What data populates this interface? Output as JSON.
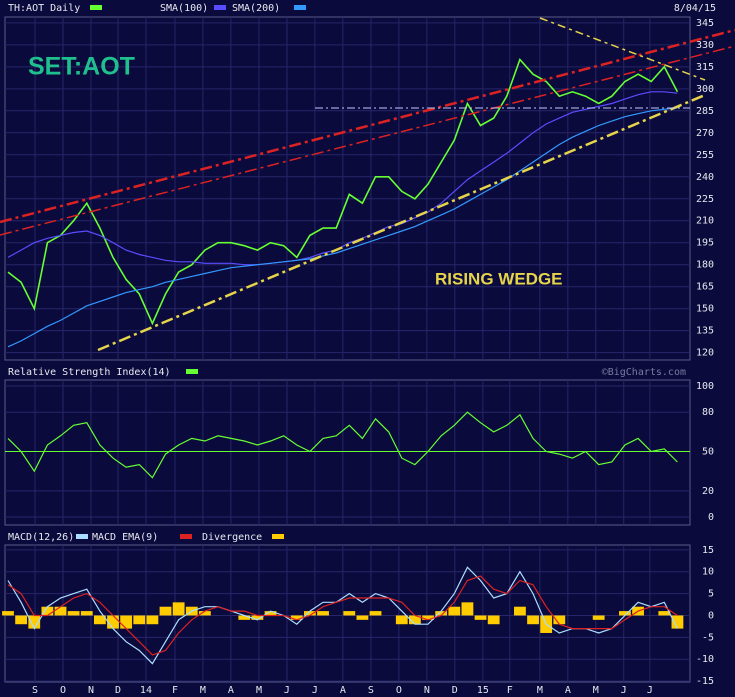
{
  "chart_data": [
    {
      "type": "line",
      "title": "SET:AOT",
      "date": "8/04/15",
      "annotation": "RISING WEDGE",
      "ylim": [
        115,
        349
      ],
      "yticks": [
        120,
        135,
        150,
        165,
        180,
        195,
        210,
        225,
        240,
        255,
        270,
        285,
        300,
        315,
        330,
        345
      ],
      "grid": true,
      "series": [
        {
          "name": "TH:AOT Daily",
          "color": "#66ff33",
          "values": [
            175,
            168,
            150,
            195,
            200,
            210,
            222,
            205,
            185,
            170,
            160,
            140,
            160,
            175,
            180,
            190,
            195,
            195,
            193,
            190,
            195,
            193,
            185,
            200,
            205,
            205,
            228,
            222,
            240,
            240,
            230,
            225,
            235,
            250,
            265,
            290,
            275,
            280,
            295,
            320,
            310,
            305,
            295,
            298,
            295,
            290,
            295,
            305,
            310,
            305,
            315,
            298
          ]
        },
        {
          "name": "SMA(100)",
          "color": "#5a4cff",
          "values": [
            185,
            190,
            195,
            198,
            200,
            202,
            203,
            200,
            195,
            190,
            187,
            185,
            183,
            182,
            182,
            181,
            181,
            181,
            180,
            180,
            181,
            182,
            183,
            185,
            188,
            190,
            195,
            198,
            202,
            206,
            208,
            212,
            216,
            222,
            230,
            238,
            244,
            250,
            256,
            263,
            270,
            276,
            280,
            284,
            286,
            288,
            290,
            293,
            296,
            298,
            298,
            297
          ]
        },
        {
          "name": "SMA(200)",
          "color": "#3399ff",
          "values": [
            124,
            128,
            133,
            138,
            142,
            147,
            152,
            155,
            158,
            161,
            163,
            165,
            168,
            170,
            172,
            174,
            176,
            178,
            179,
            180,
            181,
            182,
            183,
            184,
            186,
            188,
            191,
            194,
            197,
            200,
            203,
            206,
            210,
            214,
            218,
            223,
            228,
            233,
            238,
            244,
            250,
            256,
            262,
            267,
            271,
            275,
            278,
            281,
            283,
            285,
            286,
            287
          ]
        }
      ]
    },
    {
      "type": "line",
      "credit": "©BigCharts.com",
      "ylim": [
        -6.1,
        104.6
      ],
      "yticks": [
        0,
        20,
        50,
        80,
        100
      ],
      "midline": 50,
      "series": [
        {
          "name": "Relative Strength Index(14)",
          "color": "#66ff33",
          "values": [
            60,
            50,
            35,
            55,
            62,
            70,
            72,
            55,
            45,
            38,
            40,
            30,
            48,
            55,
            60,
            58,
            62,
            60,
            58,
            55,
            58,
            62,
            55,
            50,
            60,
            62,
            70,
            60,
            75,
            65,
            45,
            40,
            50,
            62,
            70,
            80,
            72,
            65,
            70,
            78,
            60,
            50,
            48,
            45,
            50,
            40,
            42,
            55,
            60,
            50,
            52,
            42
          ]
        }
      ]
    },
    {
      "type": "line",
      "ylim": [
        -15.2,
        16.1
      ],
      "yticks": [
        -15,
        -10,
        -5,
        0,
        5,
        10,
        15
      ],
      "xlim": [
        0,
        51.5
      ],
      "xticks": [
        {
          "value": 2.06,
          "label": "S"
        },
        {
          "value": 4.19,
          "label": "O"
        },
        {
          "value": 6.32,
          "label": "N"
        },
        {
          "value": 8.38,
          "label": "D"
        },
        {
          "value": 10.51,
          "label": "14"
        },
        {
          "value": 12.72,
          "label": "F"
        },
        {
          "value": 14.85,
          "label": "M"
        },
        {
          "value": 16.98,
          "label": "A"
        },
        {
          "value": 19.12,
          "label": "M"
        },
        {
          "value": 21.25,
          "label": "J"
        },
        {
          "value": 23.38,
          "label": "J"
        },
        {
          "value": 25.51,
          "label": "A"
        },
        {
          "value": 27.65,
          "label": "S"
        },
        {
          "value": 29.78,
          "label": "O"
        },
        {
          "value": 31.91,
          "label": "N"
        },
        {
          "value": 34.04,
          "label": "D"
        },
        {
          "value": 36.18,
          "label": "15"
        },
        {
          "value": 38.23,
          "label": "F"
        },
        {
          "value": 40.52,
          "label": "M"
        },
        {
          "value": 42.65,
          "label": "A"
        },
        {
          "value": 44.78,
          "label": "M"
        },
        {
          "value": 46.91,
          "label": "J"
        },
        {
          "value": 48.9,
          "label": "J"
        }
      ],
      "series": [
        {
          "name": "MACD(12,26)",
          "color": "#aaddff",
          "values": [
            8,
            3,
            -3,
            2,
            4,
            5,
            6,
            1,
            -3,
            -6,
            -8,
            -11,
            -6,
            -1,
            1,
            2,
            2,
            1,
            0,
            -1,
            1,
            0,
            -2,
            1,
            3,
            3,
            5,
            3,
            5,
            4,
            1,
            -2,
            -2,
            1,
            5,
            11,
            8,
            4,
            5,
            10,
            5,
            -2,
            -4,
            -3,
            -3,
            -4,
            -3,
            0,
            3,
            2,
            3,
            -3
          ]
        },
        {
          "name": "MACD EMA(9)",
          "color": "#dd2222",
          "values": [
            7,
            5,
            0,
            0,
            2,
            4,
            5,
            3,
            0,
            -3,
            -6,
            -9,
            -8,
            -4,
            -1,
            1,
            2,
            1,
            1,
            0,
            0,
            0,
            -1,
            0,
            2,
            3,
            4,
            4,
            4,
            4,
            3,
            0,
            -1,
            0,
            3,
            8,
            9,
            6,
            5,
            8,
            7,
            2,
            -2,
            -3,
            -3,
            -3,
            -3,
            -1,
            1,
            2,
            2,
            0
          ]
        },
        {
          "name": "Divergence",
          "color": "#ffcc00",
          "type": "bar",
          "values": [
            1,
            -2,
            -3,
            2,
            2,
            1,
            1,
            -2,
            -3,
            -3,
            -2,
            -2,
            2,
            3,
            2,
            1,
            0,
            0,
            -1,
            -1,
            1,
            0,
            -1,
            1,
            1,
            0,
            1,
            -1,
            1,
            0,
            -2,
            -2,
            -1,
            1,
            2,
            3,
            -1,
            -2,
            0,
            2,
            -2,
            -4,
            -2,
            0,
            0,
            -1,
            0,
            1,
            2,
            0,
            1,
            -3
          ]
        }
      ]
    }
  ]
}
